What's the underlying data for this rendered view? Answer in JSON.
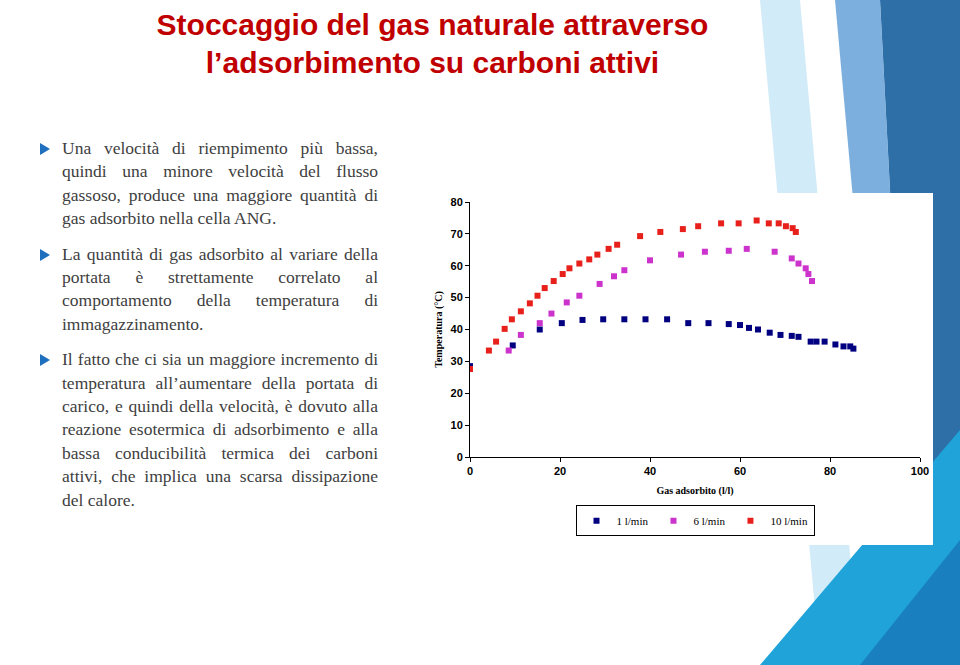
{
  "slide": {
    "title": [
      "Stoccaggio del gas naturale attraverso",
      "l’adsorbimento su carboni attivi"
    ],
    "bullets": [
      "Una velocità di riempimento più bassa, quindi una minore velocità del flusso gassoso, produce una maggiore quantità di gas adsorbito nella cella ANG.",
      "La quantità di gas adsorbito al variare della portata è strettamente correlato al comportamento della temperatura di immagazzinamento.",
      "Il fatto che ci sia un maggiore incremento di temperatura all’aumentare della portata di carico, e quindi della velocità, è dovuto alla reazione esotermica di adsorbimento e alla bassa conducibilità termica dei carboni attivi, che implica una scarsa dissipazione del calore."
    ]
  },
  "chart_data": {
    "type": "scatter",
    "x_label": "Gas adsorbito (l/l)",
    "y_label": "Temperatura (°C)",
    "xlim": [
      0,
      100
    ],
    "xticks": [
      0,
      20,
      40,
      60,
      80,
      100
    ],
    "ylim": [
      0,
      80
    ],
    "yticks": [
      0,
      10,
      20,
      30,
      40,
      50,
      60,
      70,
      80
    ],
    "grid": false,
    "legend": "bottom",
    "marker": "square",
    "series": [
      {
        "name": "1 l/min",
        "color": "#000080",
        "x": [
          0,
          9.5,
          15.5,
          20.4,
          25,
          29.6,
          34.3,
          39,
          43.8,
          48.5,
          53,
          57.5,
          60,
          62,
          64,
          66.6,
          69,
          71.5,
          73,
          75.7,
          77,
          78.8,
          81.2,
          83,
          84.5,
          85.2
        ],
        "values": [
          28.5,
          35,
          40,
          42,
          43,
          43.2,
          43.2,
          43.2,
          43.2,
          42,
          42,
          41.7,
          41.4,
          40.5,
          40,
          39,
          38.3,
          38,
          37.7,
          36.2,
          36.2,
          36.2,
          35.3,
          34.7,
          34.7,
          34
        ]
      },
      {
        "name": "6 l/min",
        "color": "#cc33cc",
        "x": [
          8.6,
          11.3,
          15.5,
          18.1,
          21.5,
          24.3,
          28.8,
          32,
          34.3,
          40,
          46.9,
          52.2,
          57.5,
          61.5,
          67.7,
          71.5,
          73,
          74.6,
          75.2,
          76
        ],
        "values": [
          33.4,
          38.3,
          42,
          45,
          48.5,
          50.6,
          54.3,
          56.7,
          58.6,
          61.7,
          63.5,
          64.4,
          64.7,
          65.3,
          64.4,
          62.3,
          60.7,
          59.2,
          57.4,
          55.2
        ]
      },
      {
        "name": "10 l/min",
        "color": "#e8201c",
        "x": [
          0,
          4.2,
          5.8,
          7.7,
          9.3,
          11.3,
          13.3,
          15,
          16.6,
          18.6,
          20.6,
          22.1,
          24.3,
          26.5,
          28.3,
          30.8,
          32.7,
          37.8,
          42.3,
          47.3,
          50.7,
          55.8,
          59.7,
          63.7,
          66.4,
          68.6,
          70.2,
          71.7,
          72.4
        ],
        "values": [
          27.6,
          33.4,
          36.2,
          40.2,
          43.2,
          45.7,
          48.2,
          50.6,
          53,
          55.2,
          57.4,
          59.2,
          60.7,
          62,
          63.5,
          65.3,
          66.6,
          69.3,
          70.6,
          71.5,
          72.4,
          73.3,
          73.3,
          74.2,
          73.3,
          73.3,
          72.4,
          71.8,
          70.6
        ]
      }
    ]
  }
}
